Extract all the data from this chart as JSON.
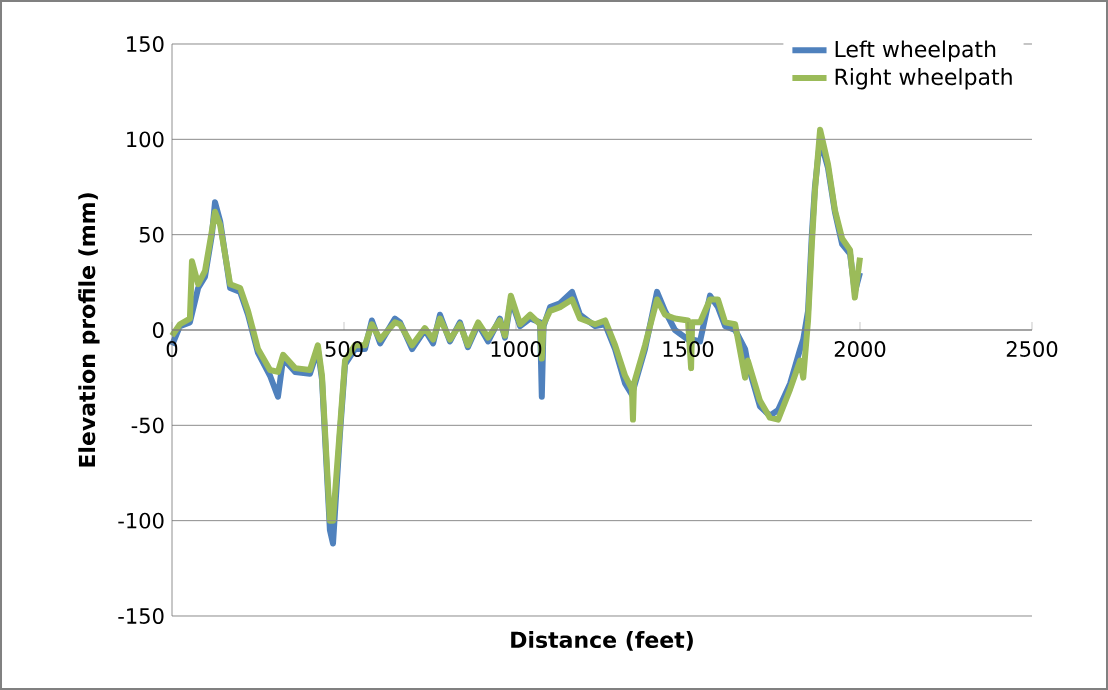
{
  "chart_data": {
    "type": "line",
    "xlabel": "Distance (feet)",
    "ylabel": "Elevation profile (mm)",
    "x": [
      0,
      23,
      52,
      58,
      76,
      96,
      116,
      125,
      140,
      169,
      198,
      221,
      250,
      285,
      308,
      323,
      358,
      401,
      424,
      436,
      459,
      468,
      488,
      503,
      532,
      561,
      581,
      605,
      648,
      663,
      698,
      735,
      759,
      779,
      808,
      837,
      860,
      890,
      919,
      953,
      968,
      985,
      1012,
      1041,
      1070,
      1075,
      1080,
      1099,
      1128,
      1163,
      1186,
      1230,
      1259,
      1288,
      1317,
      1337,
      1340,
      1343,
      1375,
      1410,
      1433,
      1462,
      1500,
      1509,
      1512,
      1535,
      1564,
      1587,
      1608,
      1637,
      1666,
      1674,
      1709,
      1738,
      1762,
      1797,
      1826,
      1835,
      1849,
      1860,
      1869,
      1884,
      1907,
      1927,
      1948,
      1971,
      1985,
      2000
    ],
    "series": [
      {
        "name": "Left wheelpath",
        "color": "#4f81bd",
        "values": [
          -8,
          2,
          4,
          null,
          22,
          28,
          50,
          67,
          57,
          22,
          20,
          8,
          -12,
          -24,
          -35,
          -15,
          -22,
          -23,
          -10,
          -26,
          -105,
          -112,
          -55,
          -18,
          -10,
          -10,
          5,
          -7,
          6,
          4,
          -10,
          0,
          -7,
          8,
          -6,
          4,
          -9,
          3,
          -6,
          6,
          -4,
          16,
          2,
          6,
          4,
          -35,
          2,
          12,
          14,
          20,
          8,
          2,
          3,
          -10,
          -28,
          -34,
          -32,
          -30,
          -10,
          20,
          10,
          0,
          -5,
          -5,
          -5,
          -6,
          18,
          12,
          2,
          0,
          -10,
          -18,
          -40,
          -45,
          -42,
          -28,
          -10,
          -5,
          10,
          50,
          75,
          100,
          85,
          62,
          45,
          40,
          20,
          30
        ]
      },
      {
        "name": "Right wheelpath",
        "color": "#9bbb59",
        "values": [
          -3,
          3,
          6,
          36,
          24,
          31,
          52,
          62,
          55,
          24,
          22,
          10,
          -10,
          -21,
          -22,
          -13,
          -20,
          -21,
          -8,
          -24,
          -100,
          -100,
          -52,
          -16,
          -8,
          -8,
          3,
          -5,
          4,
          3,
          -8,
          1,
          -5,
          6,
          -5,
          3,
          -8,
          4,
          -4,
          5,
          -3,
          18,
          3,
          8,
          3,
          -15,
          3,
          10,
          12,
          16,
          6,
          3,
          5,
          -8,
          -24,
          -31,
          -47,
          -28,
          -8,
          16,
          8,
          6,
          5,
          -20,
          4,
          4,
          16,
          16,
          4,
          3,
          -25,
          -16,
          -37,
          -46,
          -47,
          -31,
          -16,
          -25,
          5,
          45,
          73,
          105,
          87,
          63,
          48,
          42,
          17,
          38
        ]
      }
    ],
    "xlim": [
      0,
      2500
    ],
    "xticks": [
      0,
      500,
      1000,
      1500,
      2000,
      2500
    ],
    "ylim": [
      -150,
      150
    ],
    "yticks": [
      -150,
      -100,
      -50,
      0,
      50,
      100,
      150
    ],
    "grid": "y",
    "legend": "top right",
    "marker": "none",
    "line_style": "solid"
  }
}
